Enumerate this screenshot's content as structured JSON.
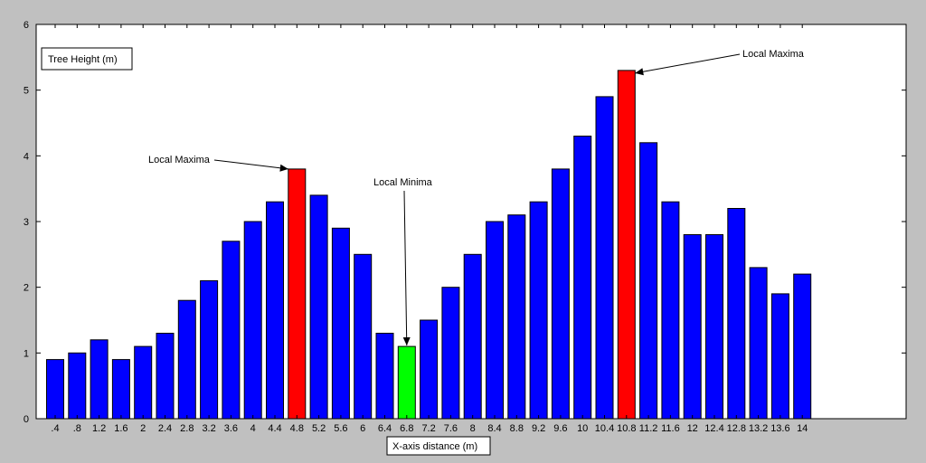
{
  "chart_data": {
    "type": "bar",
    "title": "",
    "xlabel": "X-axis distance (m)",
    "ylabel": "",
    "legend": [
      "Tree Height (m)"
    ],
    "legend_position": "top-left",
    "ylim": [
      0,
      6
    ],
    "yticks": [
      0,
      1,
      2,
      3,
      4,
      5,
      6
    ],
    "grid": false,
    "categories": [
      ".4",
      ".8",
      "1.2",
      "1.6",
      "2",
      "2.4",
      "2.8",
      "3.2",
      "3.6",
      "4",
      "4.4",
      "4.8",
      "5.2",
      "5.6",
      "6",
      "6.4",
      "6.8",
      "7.2",
      "7.6",
      "8",
      "8.4",
      "8.8",
      "9.2",
      "9.6",
      "10",
      "10.4",
      "10.8",
      "11.2",
      "11.6",
      "12",
      "12.4",
      "12.8",
      "13.2",
      "13.6",
      "14"
    ],
    "values": [
      0.9,
      1.0,
      1.2,
      0.9,
      1.1,
      1.3,
      1.8,
      2.1,
      2.7,
      3.0,
      3.3,
      3.8,
      3.4,
      2.9,
      2.5,
      1.3,
      1.1,
      1.5,
      2.0,
      2.5,
      3.0,
      3.1,
      3.3,
      3.8,
      4.3,
      4.9,
      5.3,
      4.2,
      3.3,
      2.8,
      2.8,
      3.2,
      2.3,
      1.9,
      2.2
    ],
    "bar_colors": {
      "default": "#0000ff",
      "highlight": {
        "11": "#ff0000",
        "26": "#ff0000",
        "16": "#00ff00"
      }
    },
    "annotations": [
      {
        "text": "Local Maxima",
        "target_index": 11
      },
      {
        "text": "Local Minima",
        "target_index": 16
      },
      {
        "text": "Local Maxima",
        "target_index": 26
      }
    ]
  }
}
